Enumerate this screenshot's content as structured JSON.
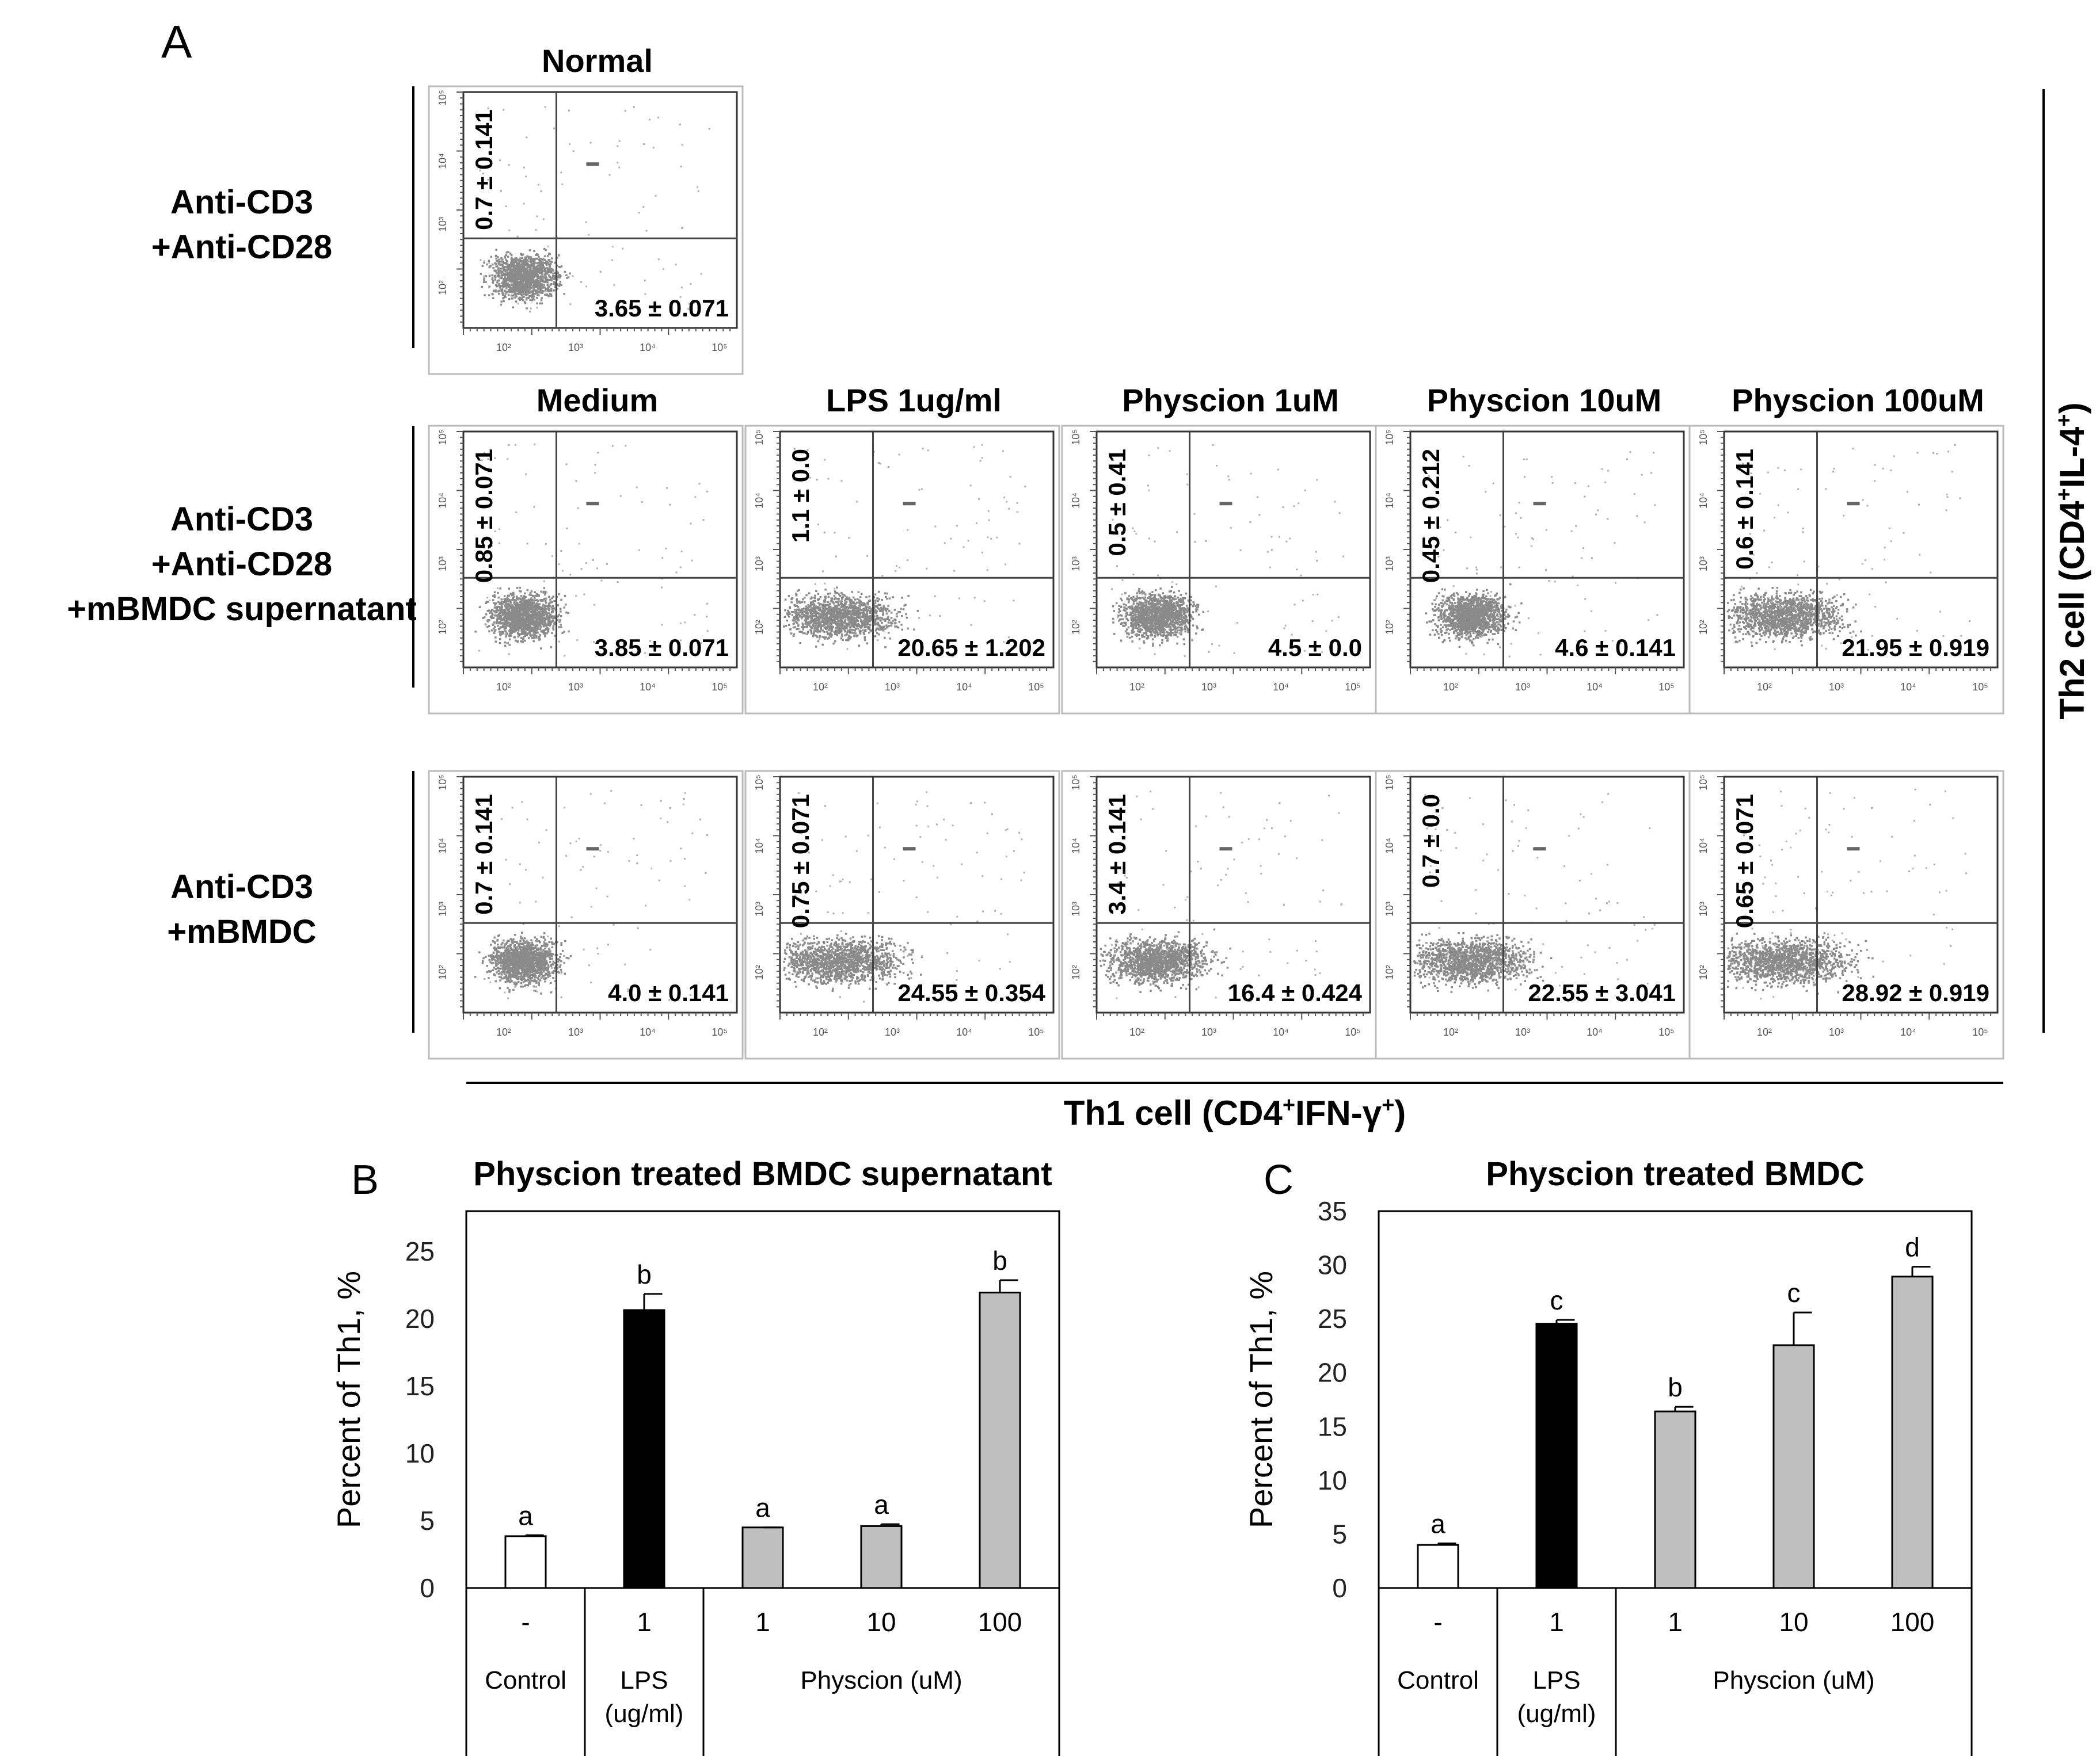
{
  "panel_a": {
    "label": "A",
    "rows": [
      {
        "label_lines": [
          "Anti-CD3",
          "+Anti-CD28"
        ],
        "plots": [
          {
            "title": "Normal",
            "ul": "0.7 ± 0.141",
            "lr": "3.65 ± 0.071"
          }
        ]
      },
      {
        "label_lines": [
          "Anti-CD3",
          "+Anti-CD28",
          "+mBMDC supernatant"
        ],
        "plots": [
          {
            "title": "Medium",
            "ul": "0.85 ± 0.071",
            "lr": "3.85 ± 0.071"
          },
          {
            "title": "LPS 1ug/ml",
            "ul": "1.1 ± 0.0",
            "lr": "20.65 ± 1.202"
          },
          {
            "title": "Physcion 1uM",
            "ul": "0.5 ± 0.41",
            "lr": "4.5 ± 0.0"
          },
          {
            "title": "Physcion 10uM",
            "ul": "0.45 ± 0.212",
            "lr": "4.6 ± 0.141"
          },
          {
            "title": "Physcion 100uM",
            "ul": "0.6 ± 0.141",
            "lr": "21.95 ± 0.919"
          }
        ]
      },
      {
        "label_lines": [
          "Anti-CD3",
          "+mBMDC"
        ],
        "plots": [
          {
            "title": "",
            "ul": "0.7 ± 0.141",
            "lr": "4.0 ± 0.141"
          },
          {
            "title": "",
            "ul": "0.75 ± 0.071",
            "lr": "24.55 ± 0.354"
          },
          {
            "title": "",
            "ul": "3.4 ± 0.141",
            "lr": "16.4 ± 0.424"
          },
          {
            "title": "",
            "ul": "0.7 ± 0.0",
            "lr": "22.55 ± 3.041"
          },
          {
            "title": "",
            "ul": "0.65 ± 0.071",
            "lr": "28.92 ± 0.919"
          }
        ]
      }
    ],
    "x_axis_label": {
      "base": "Th1 cell (CD4",
      "sup1": "+",
      "mid": "IFN-γ",
      "sup2": "+",
      "end": ")"
    },
    "y_axis_label": {
      "base": "Th2 cell (CD4",
      "sup1": "+",
      "mid": "IL-4",
      "sup2": "+",
      "end": ")"
    },
    "tick_labels": [
      "10²",
      "10³",
      "10⁴",
      "10⁵"
    ]
  },
  "chart_data": [
    {
      "type": "bar",
      "panel_label": "B",
      "title": "Physcion treated BMDC supernatant",
      "ylabel": "Percent of Th1, %",
      "ylim": [
        0,
        28
      ],
      "yticks": [
        0,
        5,
        10,
        15,
        20,
        25
      ],
      "categories": [
        "-",
        "1",
        "1",
        "10",
        "100"
      ],
      "values": [
        3.85,
        20.65,
        4.5,
        4.6,
        21.95
      ],
      "errors": [
        0.071,
        1.202,
        0.0,
        0.141,
        0.919
      ],
      "letters": [
        "a",
        "b",
        "a",
        "a",
        "b"
      ],
      "bar_colors": [
        "#ffffff",
        "#000000",
        "#bfbfbf",
        "#bfbfbf",
        "#bfbfbf"
      ],
      "groups": [
        {
          "label_lines": [
            "Control"
          ],
          "span": [
            0,
            0
          ]
        },
        {
          "label_lines": [
            "LPS",
            "(ug/ml)"
          ],
          "span": [
            1,
            1
          ]
        },
        {
          "label_lines": [
            "Physcion (uM)"
          ],
          "span": [
            2,
            4
          ]
        }
      ]
    },
    {
      "type": "bar",
      "panel_label": "C",
      "title": "Physcion treated BMDC",
      "ylabel": "Percent of Th1, %",
      "ylim": [
        0,
        35
      ],
      "yticks": [
        0,
        5,
        10,
        15,
        20,
        25,
        30,
        35
      ],
      "categories": [
        "-",
        "1",
        "1",
        "10",
        "100"
      ],
      "values": [
        4.0,
        24.55,
        16.4,
        22.55,
        28.92
      ],
      "errors": [
        0.141,
        0.354,
        0.424,
        3.041,
        0.919
      ],
      "letters": [
        "a",
        "c",
        "b",
        "c",
        "d"
      ],
      "bar_colors": [
        "#ffffff",
        "#000000",
        "#bfbfbf",
        "#bfbfbf",
        "#bfbfbf"
      ],
      "groups": [
        {
          "label_lines": [
            "Control"
          ],
          "span": [
            0,
            0
          ]
        },
        {
          "label_lines": [
            "LPS",
            "(ug/ml)"
          ],
          "span": [
            1,
            1
          ]
        },
        {
          "label_lines": [
            "Physcion (uM)"
          ],
          "span": [
            2,
            4
          ]
        }
      ]
    }
  ]
}
